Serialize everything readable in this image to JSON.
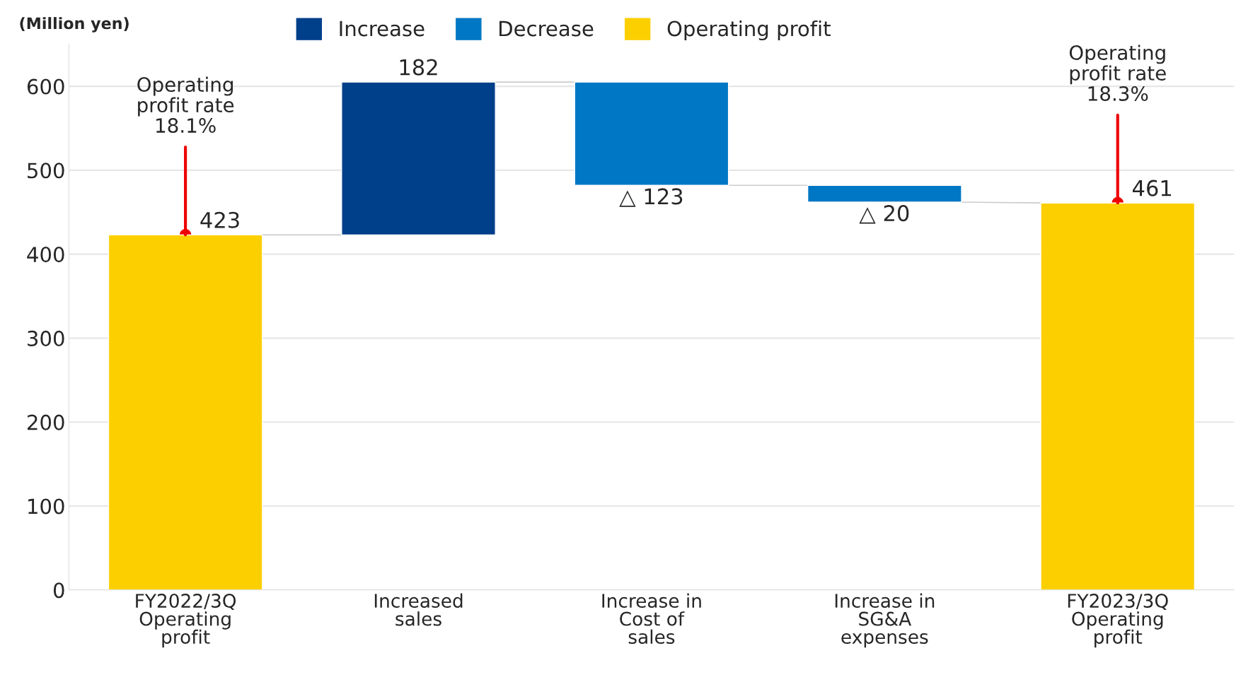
{
  "chart_data": {
    "type": "bar",
    "ylabel": "(Million yen)",
    "categories": [
      "FY2022/3Q\nOperating\nprofit",
      "Increased\nsales",
      "Increase in\nCost of\nsales",
      "Increase in\nSG&A\nexpenses",
      "FY2023/3Q\nOperating\nprofit"
    ],
    "series": [
      {
        "name": "Increase",
        "color": "#003f8a",
        "base": [
          null,
          423,
          null,
          null,
          null
        ],
        "values": [
          null,
          182,
          null,
          null,
          null
        ]
      },
      {
        "name": "Decrease",
        "color": "#0077c4",
        "base": [
          null,
          null,
          605,
          482,
          null
        ],
        "values": [
          null,
          null,
          -123,
          -20,
          null
        ]
      },
      {
        "name": "Operating profit",
        "color": "#fccf00",
        "base": [
          0,
          null,
          null,
          null,
          0
        ],
        "values": [
          423,
          null,
          null,
          null,
          461
        ]
      }
    ],
    "value_labels": [
      "423",
      "182",
      "△ 123",
      "△ 20",
      "461"
    ],
    "annotations": [
      {
        "text": "Operating\nprofit rate\n18.1%",
        "x": "FY2022/3Q\nOperating\nprofit",
        "y": 423
      },
      {
        "text": "Operating\nprofit rate\n18.3%",
        "x": "FY2023/3Q\nOperating\nprofit",
        "y": 461
      }
    ],
    "ylim": [
      0,
      650
    ],
    "yticks": [
      0,
      100,
      200,
      300,
      400,
      500,
      600
    ],
    "grid": "y",
    "legend": "top"
  }
}
